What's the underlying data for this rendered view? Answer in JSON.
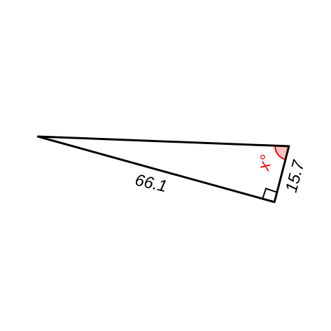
{
  "diagram": {
    "shape": "right triangle",
    "labels": {
      "hypotenuse": "66.1",
      "short_leg": "15.7",
      "angle": "x°"
    },
    "colors": {
      "stroke": "#000000",
      "angle_label": "#ff0000",
      "angle_fill": "#ffc0c0",
      "angle_arc": "#ff0000",
      "background": "#ffffff"
    },
    "right_angle_marker": true
  }
}
